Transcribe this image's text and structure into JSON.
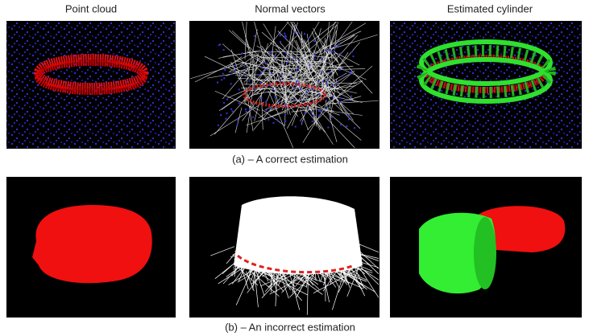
{
  "column_headers": [
    "Point cloud",
    "Normal vectors",
    "Estimated cylinder"
  ],
  "rows": [
    {
      "caption": "(a) – A correct estimation"
    },
    {
      "caption": "(b) – An incorrect estimation"
    }
  ]
}
